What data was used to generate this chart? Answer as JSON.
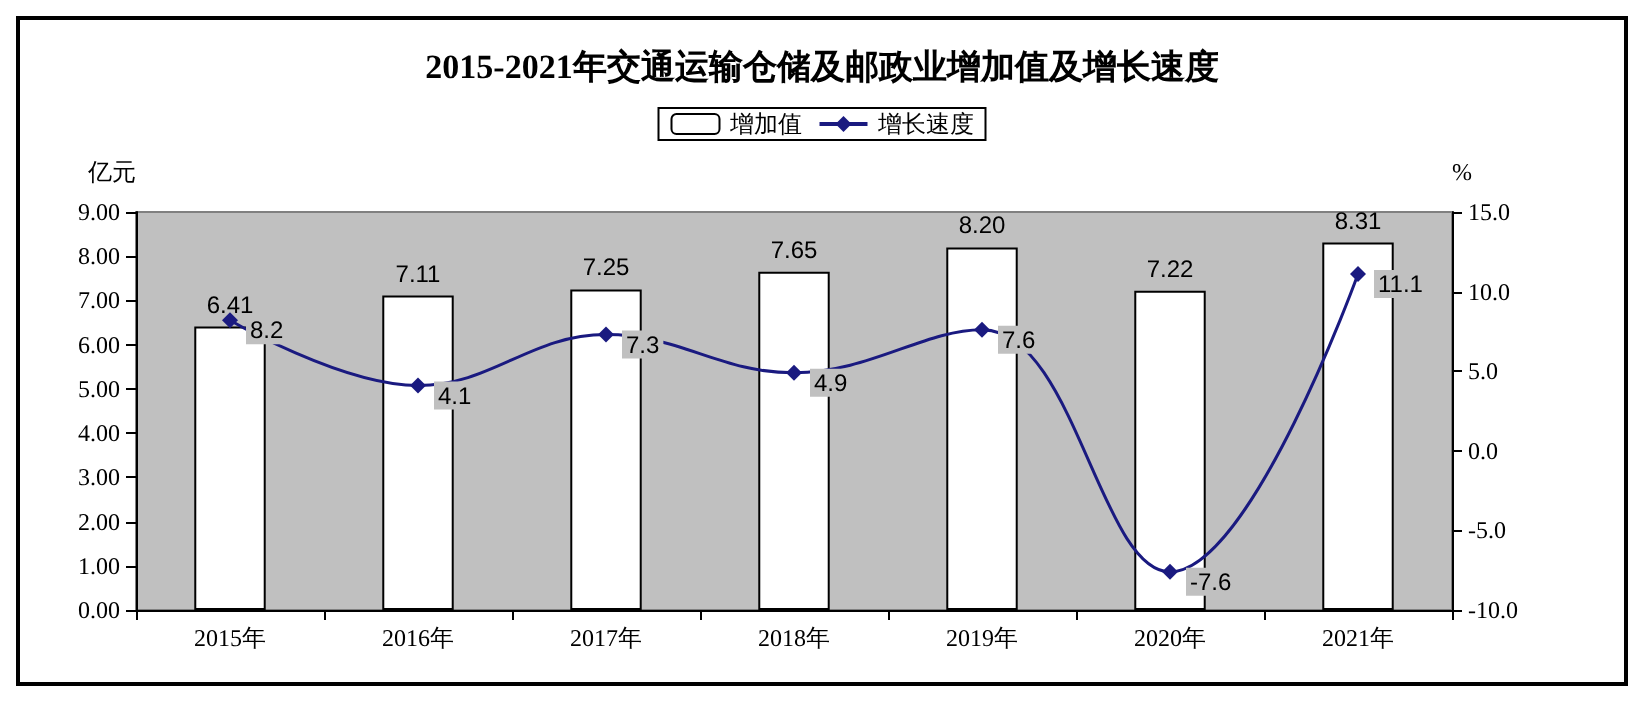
{
  "chart_data": {
    "type": "bar",
    "title": "2015-2021年交通运输仓储及邮政业增加值及增长速度",
    "ylabel": "亿元",
    "y2label": "%",
    "categories": [
      "2015年",
      "2016年",
      "2017年",
      "2018年",
      "2019年",
      "2020年",
      "2021年"
    ],
    "series": [
      {
        "name": "增加值",
        "color": "#ffffff",
        "values": [
          6.41,
          7.11,
          7.25,
          7.65,
          8.2,
          7.22,
          8.31
        ],
        "value_labels": [
          "6.41",
          "7.11",
          "7.25",
          "7.65",
          "8.20",
          "7.22",
          "8.31"
        ]
      },
      {
        "name": "增长速度",
        "type": "line",
        "axis": "y2",
        "color": "#1a1a80",
        "marker": "diamond",
        "values": [
          8.2,
          4.1,
          7.3,
          4.9,
          7.6,
          -7.6,
          11.1
        ],
        "value_labels": [
          "8.2",
          "4.1",
          "7.3",
          "4.9",
          "7.6",
          "-7.6",
          "11.1"
        ]
      }
    ],
    "ylim": [
      0,
      9
    ],
    "yticks": [
      {
        "value": 0,
        "label": "0.00"
      },
      {
        "value": 1,
        "label": "1.00"
      },
      {
        "value": 2,
        "label": "2.00"
      },
      {
        "value": 3,
        "label": "3.00"
      },
      {
        "value": 4,
        "label": "4.00"
      },
      {
        "value": 5,
        "label": "5.00"
      },
      {
        "value": 6,
        "label": "6.00"
      },
      {
        "value": 7,
        "label": "7.00"
      },
      {
        "value": 8,
        "label": "8.00"
      },
      {
        "value": 9,
        "label": "9.00"
      }
    ],
    "y2lim": [
      -10,
      15
    ],
    "y2ticks": [
      {
        "value": -10,
        "label": "-10.0"
      },
      {
        "value": -5,
        "label": "-5.0"
      },
      {
        "value": 0,
        "label": "0.0"
      },
      {
        "value": 5,
        "label": "5.0"
      },
      {
        "value": 10,
        "label": "10.0"
      },
      {
        "value": 15,
        "label": "15.0"
      }
    ],
    "grid": false,
    "legend": "top"
  }
}
